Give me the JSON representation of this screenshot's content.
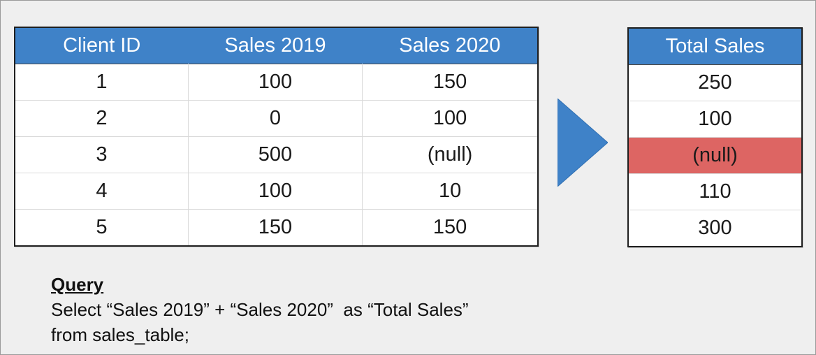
{
  "source_table": {
    "headers": [
      "Client ID",
      "Sales 2019",
      "Sales 2020"
    ],
    "rows": [
      [
        "1",
        "100",
        "150"
      ],
      [
        "2",
        "0",
        "100"
      ],
      [
        "3",
        "500",
        "(null)"
      ],
      [
        "4",
        "100",
        "10"
      ],
      [
        "5",
        "150",
        "150"
      ]
    ]
  },
  "result_table": {
    "header": "Total Sales",
    "rows": [
      "250",
      "100",
      "(null)",
      "110",
      "300"
    ],
    "highlight_row_index": 2,
    "highlight_color": "#dd6563"
  },
  "arrow": {
    "icon": "play-triangle-right",
    "color": "#3f82c8"
  },
  "query": {
    "label": "Query",
    "line1": "Select “Sales 2019” + “Sales 2020”  as “Total Sales”",
    "line2": "from sales_table;"
  },
  "colors": {
    "header_bg": "#3f82c8",
    "background": "#efefef"
  }
}
